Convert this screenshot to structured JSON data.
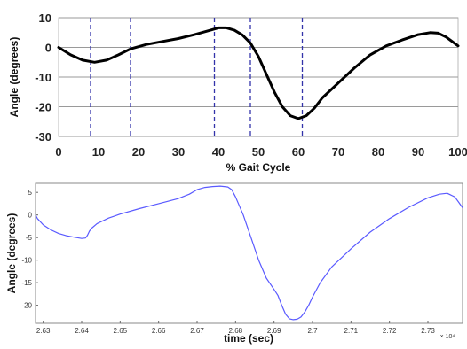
{
  "chart_data": [
    {
      "type": "line",
      "xlabel": "% Gait Cycle",
      "ylabel": "Angle (degrees)",
      "xlim": [
        0,
        100
      ],
      "ylim": [
        -30,
        10
      ],
      "x_ticks": [
        "0",
        "10",
        "20",
        "30",
        "40",
        "50",
        "60",
        "70",
        "80",
        "90",
        "100"
      ],
      "y_ticks": [
        "10",
        "0",
        "-10",
        "-20",
        "-30"
      ],
      "grid": "horizontal",
      "vertical_markers": [
        8,
        18,
        39,
        48,
        61
      ],
      "series": [
        {
          "color": "#000000",
          "x": [
            0,
            3,
            6,
            9,
            12,
            15,
            18,
            22,
            26,
            30,
            34,
            38,
            40,
            42,
            44,
            46,
            48,
            50,
            52,
            54,
            56,
            58,
            60,
            62,
            64,
            66,
            70,
            74,
            78,
            82,
            86,
            90,
            93,
            95,
            97,
            99,
            100
          ],
          "y": [
            0,
            -2.5,
            -4.3,
            -5,
            -4.3,
            -2.5,
            -0.5,
            1,
            2,
            3,
            4.3,
            5.8,
            6.6,
            6.6,
            5.8,
            4.2,
            1.5,
            -3,
            -9,
            -15,
            -20,
            -23,
            -24,
            -23,
            -20.5,
            -17,
            -12,
            -7,
            -2.5,
            0.5,
            2.5,
            4.3,
            5,
            4.8,
            3.5,
            1.5,
            0.5
          ]
        }
      ]
    },
    {
      "type": "line",
      "xlabel": "time (sec)",
      "ylabel": "Angle (degrees)",
      "xlim": [
        2.628,
        2.739
      ],
      "ylim": [
        -24,
        7
      ],
      "x_ticks": [
        "2.63",
        "2.64",
        "2.65",
        "2.66",
        "2.67",
        "2.68",
        "2.69",
        "2.7",
        "2.71",
        "2.72",
        "2.73"
      ],
      "x_tick_values": [
        2.63,
        2.64,
        2.65,
        2.66,
        2.67,
        2.68,
        2.69,
        2.7,
        2.71,
        2.72,
        2.73
      ],
      "x_exponent": "× 10⁴",
      "y_ticks": [
        "5",
        "0",
        "-5",
        "-10",
        "-15",
        "-20"
      ],
      "y_tick_values": [
        5,
        0,
        -5,
        -10,
        -15,
        -20
      ],
      "series": [
        {
          "color": "#5a5aff",
          "x": [
            2.628,
            2.6285,
            2.63,
            2.632,
            2.634,
            2.636,
            2.638,
            2.64,
            2.641,
            2.6415,
            2.642,
            2.6425,
            2.644,
            2.647,
            2.65,
            2.655,
            2.66,
            2.665,
            2.668,
            2.67,
            2.672,
            2.674,
            2.676,
            2.678,
            2.679,
            2.68,
            2.682,
            2.684,
            2.686,
            2.688,
            2.69,
            2.691,
            2.692,
            2.693,
            2.694,
            2.695,
            2.696,
            2.697,
            2.698,
            2.699,
            2.7,
            2.702,
            2.705,
            2.71,
            2.715,
            2.72,
            2.725,
            2.73,
            2.733,
            2.735,
            2.737,
            2.738,
            2.739
          ],
          "y": [
            0,
            -0.8,
            -2.2,
            -3.3,
            -4.1,
            -4.6,
            -4.9,
            -5.2,
            -5.1,
            -4.5,
            -3.6,
            -3,
            -1.9,
            -0.7,
            0.2,
            1.4,
            2.5,
            3.6,
            4.6,
            5.6,
            6.1,
            6.3,
            6.4,
            6.2,
            5.6,
            4,
            0,
            -5,
            -10,
            -14,
            -16.5,
            -17.8,
            -20,
            -22,
            -23,
            -23.2,
            -23.1,
            -22.6,
            -21.5,
            -20,
            -18.2,
            -15,
            -11.5,
            -7.5,
            -3.8,
            -0.8,
            1.7,
            3.8,
            4.6,
            4.8,
            4,
            2.8,
            1.6
          ]
        }
      ]
    }
  ]
}
